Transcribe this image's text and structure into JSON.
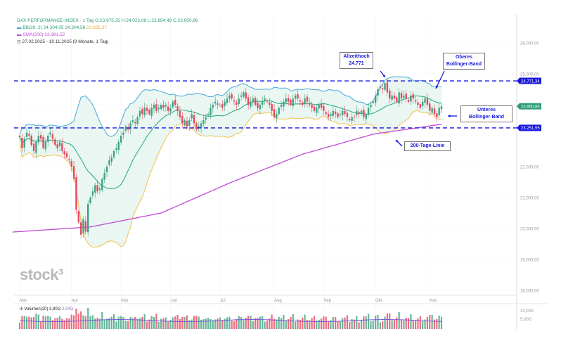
{
  "legend": {
    "symbol_line": "DAX PERFORMANCE-INDEX · 1 Tag  O:23.975,35 H:24.022,09 L:23.854,49 C:23.950,86",
    "bb_label": "BB(20, 2)",
    "bb_values": "24.304,05  24.304,56",
    "bb_lower": "23.685,27",
    "sma_label": "SMA(200) 23.381,52",
    "range": "27.02.2025 - 10.11.2025 (9 Monate, 1 Tag)"
  },
  "logo": "stock³",
  "volume_legend": {
    "label": "Volumen(20) 3,90G",
    "value": "2,94G"
  },
  "annotations": {
    "ath": [
      "Allzeithoch",
      "24.771"
    ],
    "upper": [
      "Oberes",
      "Bollinger-Band"
    ],
    "lower": [
      "Unteres",
      "Bollinger-Band"
    ],
    "sma": [
      "200-Tage-Linie"
    ]
  },
  "price_tags": {
    "ath": "24.771,34",
    "last": "23.950,86",
    "support": "23.251,55"
  },
  "colors": {
    "up": "#3ea383",
    "down": "#e8485e",
    "bb_upper": "#3fa9dc",
    "bb_mid": "#22a77a",
    "bb_lower": "#f2c14e",
    "bb_fill": "#e9f6f1",
    "sma": "#c04ad6",
    "lines": "#1717e0",
    "last": "#2a9d75"
  },
  "volume_axis": [
    "10,00G",
    "5,00G"
  ],
  "chart_data": {
    "type": "candlestick",
    "title": "DAX PERFORMANCE-INDEX, 1 Tag",
    "y_ticks": [
      18000,
      19000,
      20000,
      21000,
      22000,
      23000,
      24000,
      25000,
      26000
    ],
    "y_tick_labels": [
      "18.000,00",
      "19.000,00",
      "20.000,00",
      "21.000,00",
      "22.000,00",
      "",
      "",
      "25.000,00",
      "26.000,00"
    ],
    "ylim": [
      17800,
      26400
    ],
    "x_tick_labels": [
      "Mär",
      "Apr",
      "Mai",
      "Jun",
      "Jul",
      "Aug",
      "Sep",
      "Okt",
      "Nov"
    ],
    "x_tick_index": [
      0,
      22,
      43,
      64,
      85,
      108,
      129,
      151,
      174
    ],
    "horizontal_lines": [
      24771.34,
      23251.55
    ],
    "last_close": 23950.86,
    "closes": [
      22950,
      22600,
      22900,
      23100,
      23000,
      22700,
      22500,
      22800,
      23000,
      22900,
      22600,
      22800,
      23000,
      23100,
      22900,
      22700,
      22600,
      22800,
      22500,
      22400,
      22300,
      22200,
      22000,
      21600,
      20600,
      20200,
      19800,
      20300,
      19900,
      20800,
      21000,
      21200,
      21400,
      21200,
      21300,
      21600,
      21800,
      22000,
      22200,
      22300,
      22500,
      22600,
      22800,
      23000,
      23100,
      23300,
      23200,
      23400,
      23500,
      23400,
      23600,
      23800,
      23700,
      23900,
      23800,
      23700,
      23900,
      24000,
      23800,
      23900,
      24000,
      23900,
      24000,
      23800,
      23900,
      24100,
      24000,
      23800,
      23600,
      23400,
      23500,
      23300,
      23500,
      23700,
      23400,
      23200,
      23300,
      23400,
      23500,
      23600,
      23700,
      23900,
      24000,
      24100,
      24000,
      24000,
      23900,
      24100,
      24200,
      24300,
      24200,
      24100,
      24000,
      24200,
      24300,
      24400,
      24200,
      24000,
      24100,
      24200,
      24000,
      23900,
      24000,
      24100,
      24200,
      24100,
      24000,
      23800,
      23600,
      23700,
      23900,
      24000,
      24100,
      24200,
      24100,
      24000,
      24200,
      24300,
      24200,
      24100,
      24000,
      24200,
      24100,
      24000,
      23900,
      23800,
      23900,
      24000,
      23900,
      23800,
      23700,
      23600,
      23700,
      23800,
      23700,
      23600,
      23700,
      23800,
      23700,
      23600,
      23500,
      23600,
      23600,
      23800,
      23700,
      23800,
      23600,
      23700,
      23900,
      24000,
      24100,
      24300,
      24500,
      24600,
      24500,
      24700,
      24400,
      24200,
      24300,
      24200,
      24100,
      24400,
      24200,
      24300,
      24200,
      24100,
      24300,
      24200,
      24100,
      24000,
      23900,
      24100,
      24200,
      24000,
      23800,
      23900,
      23700,
      23600,
      23900,
      23950
    ],
    "sma200": {
      "index": [
        0,
        30,
        60,
        90,
        120,
        150,
        180
      ],
      "values": [
        19900,
        20050,
        20500,
        21500,
        22400,
        23050,
        23380
      ]
    },
    "bollinger": {
      "period": 20,
      "stddev": 2
    }
  }
}
